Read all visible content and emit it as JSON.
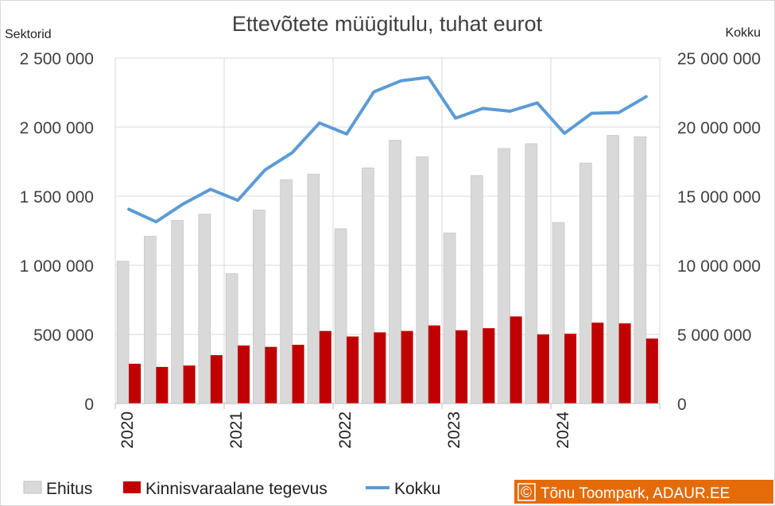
{
  "chart_data": {
    "type": "bar",
    "title": "Ettevõtete müügitulu, tuhat eurot",
    "left_axis_title": "Sektorid",
    "right_axis_title": "Kokku",
    "left_ylim": [
      0,
      2500000
    ],
    "right_ylim": [
      0,
      25000000
    ],
    "left_ticks": [
      "0",
      "500 000",
      "1 000 000",
      "1 500 000",
      "2 000 000",
      "2 500 000"
    ],
    "right_ticks": [
      "0",
      "5 000 000",
      "10 000 000",
      "15 000 000",
      "20 000 000",
      "25 000 000"
    ],
    "left_tick_values": [
      0,
      500000,
      1000000,
      1500000,
      2000000,
      2500000
    ],
    "x_labels": [
      "2020",
      "2021",
      "2022",
      "2023",
      "2024"
    ],
    "grid": true,
    "legend_position": "bottom",
    "series": [
      {
        "name": "Ehitus",
        "axis": "left",
        "kind": "bar",
        "color": "#d9d9d9",
        "values": [
          1030000,
          1210000,
          1325000,
          1370000,
          940000,
          1400000,
          1620000,
          1660000,
          1265000,
          1705000,
          1905000,
          1785000,
          1235000,
          1650000,
          1845000,
          1880000,
          1310000,
          1740000,
          1940000,
          1930000
        ]
      },
      {
        "name": "Kinnisvaraalane tegevus",
        "axis": "left",
        "kind": "bar",
        "color": "#c00000",
        "values": [
          288000,
          265000,
          275000,
          350000,
          420000,
          410000,
          425000,
          525000,
          485000,
          515000,
          525000,
          565000,
          530000,
          545000,
          630000,
          500000,
          505000,
          585000,
          580000,
          470000
        ]
      },
      {
        "name": "Kokku",
        "axis": "right",
        "kind": "line",
        "color": "#5b9bd5",
        "values": [
          14050000,
          13150000,
          14450000,
          15500000,
          14700000,
          16900000,
          18150000,
          20300000,
          19500000,
          22550000,
          23350000,
          23600000,
          20650000,
          21350000,
          21150000,
          21750000,
          19550000,
          21000000,
          21050000,
          22200000
        ]
      }
    ]
  },
  "credit": {
    "symbol": "©",
    "text": "Tõnu Toompark, ADAUR.EE",
    "color": "#e36c09"
  }
}
